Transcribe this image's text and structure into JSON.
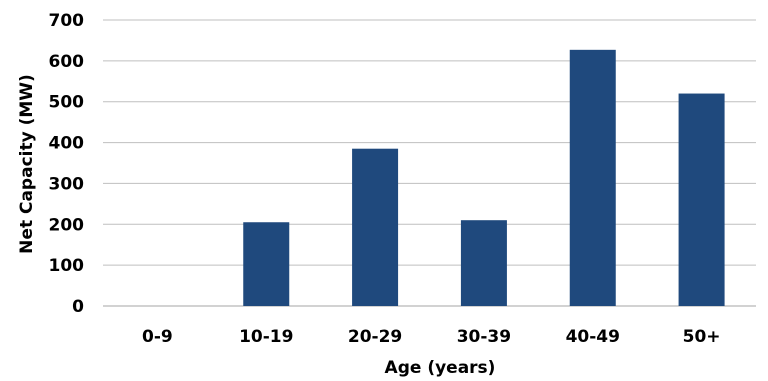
{
  "chart_data": {
    "type": "bar",
    "title": "",
    "xlabel": "Age  (years)",
    "ylabel": "Net Capacity (MW)",
    "categories": [
      "0-9",
      "10-19",
      "20-29",
      "30-39",
      "40-49",
      "50+"
    ],
    "values": [
      0,
      205,
      385,
      210,
      627,
      520
    ],
    "ylim": [
      0,
      700
    ],
    "yticks": [
      0,
      100,
      200,
      300,
      400,
      500,
      600,
      700
    ],
    "grid": true,
    "legend": "none",
    "bar_color": "#1f497d"
  }
}
